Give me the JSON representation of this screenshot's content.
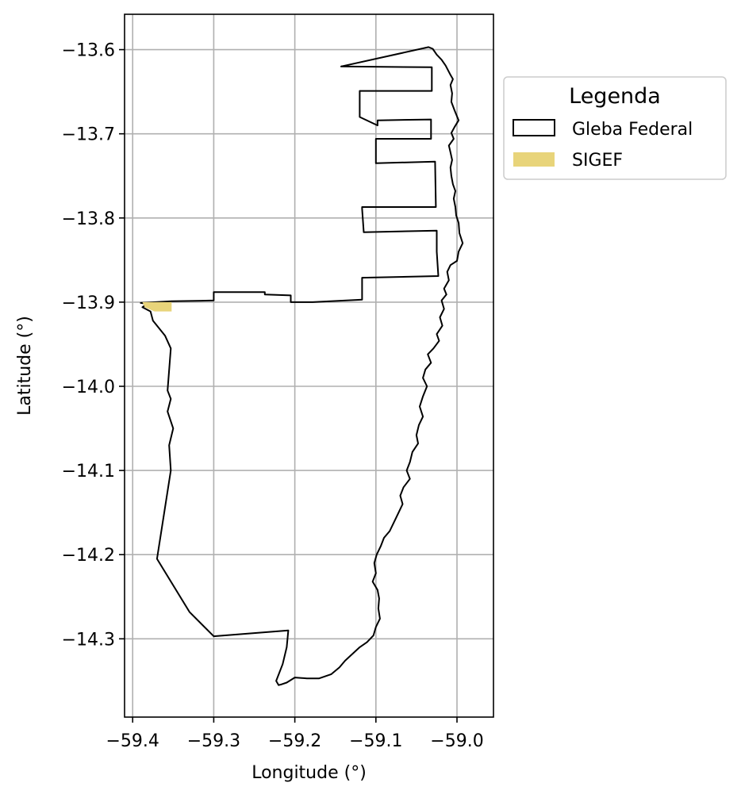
{
  "chart_data": {
    "type": "map",
    "xlabel": "Longitude (°)",
    "ylabel": "Latitude (°)",
    "xlim": [
      -59.41,
      -58.955
    ],
    "ylim": [
      -14.393,
      -13.558
    ],
    "x_ticks": [
      -59.4,
      -59.3,
      -59.2,
      -59.1,
      -59.0
    ],
    "x_tick_labels": [
      "−59.4",
      "−59.3",
      "−59.2",
      "−59.1",
      "−59.0"
    ],
    "y_ticks": [
      -13.6,
      -13.7,
      -13.8,
      -13.9,
      -14.0,
      -14.1,
      -14.2,
      -14.3
    ],
    "y_tick_labels": [
      "−13.6",
      "−13.7",
      "−13.8",
      "−13.9",
      "−14.0",
      "−14.1",
      "−14.2",
      "−14.3"
    ],
    "grid": true,
    "legend": {
      "title": "Legenda",
      "placement": "outside-upper-right",
      "entries": [
        {
          "label": "Gleba Federal",
          "style": "outline",
          "color": "#000000"
        },
        {
          "label": "SIGEF",
          "style": "fill",
          "color": "#e8d47a"
        }
      ]
    },
    "layers": [
      {
        "name": "Gleba Federal",
        "color": "#000000",
        "outline": [
          [
            -59.035,
            -13.597
          ],
          [
            -59.03,
            -13.599
          ],
          [
            -59.025,
            -13.606
          ],
          [
            -59.019,
            -13.612
          ],
          [
            -59.014,
            -13.619
          ],
          [
            -59.008,
            -13.63
          ],
          [
            -59.005,
            -13.635
          ],
          [
            -59.008,
            -13.642
          ],
          [
            -59.006,
            -13.652
          ],
          [
            -59.007,
            -13.662
          ],
          [
            -59.003,
            -13.672
          ],
          [
            -58.998,
            -13.684
          ],
          [
            -59.003,
            -13.692
          ],
          [
            -59.007,
            -13.699
          ],
          [
            -59.004,
            -13.706
          ],
          [
            -59.01,
            -13.714
          ],
          [
            -59.008,
            -13.722
          ],
          [
            -59.006,
            -13.731
          ],
          [
            -59.008,
            -13.74
          ],
          [
            -59.007,
            -13.75
          ],
          [
            -59.005,
            -13.76
          ],
          [
            -59.002,
            -13.768
          ],
          [
            -59.004,
            -13.777
          ],
          [
            -59.002,
            -13.787
          ],
          [
            -59.001,
            -13.797
          ],
          [
            -58.998,
            -13.806
          ],
          [
            -58.997,
            -13.818
          ],
          [
            -58.993,
            -13.83
          ],
          [
            -58.998,
            -13.84
          ],
          [
            -59.0,
            -13.851
          ],
          [
            -59.008,
            -13.856
          ],
          [
            -59.012,
            -13.864
          ],
          [
            -59.01,
            -13.874
          ],
          [
            -59.016,
            -13.884
          ],
          [
            -59.013,
            -13.891
          ],
          [
            -59.019,
            -13.898
          ],
          [
            -59.016,
            -13.908
          ],
          [
            -59.021,
            -13.918
          ],
          [
            -59.018,
            -13.928
          ],
          [
            -59.025,
            -13.938
          ],
          [
            -59.022,
            -13.946
          ],
          [
            -59.029,
            -13.955
          ],
          [
            -59.036,
            -13.962
          ],
          [
            -59.032,
            -13.972
          ],
          [
            -59.039,
            -13.98
          ],
          [
            -59.042,
            -13.99
          ],
          [
            -59.037,
            -14.0
          ],
          [
            -59.042,
            -14.012
          ],
          [
            -59.046,
            -14.024
          ],
          [
            -59.042,
            -14.036
          ],
          [
            -59.047,
            -14.046
          ],
          [
            -59.05,
            -14.058
          ],
          [
            -59.048,
            -14.068
          ],
          [
            -59.055,
            -14.078
          ],
          [
            -59.058,
            -14.09
          ],
          [
            -59.062,
            -14.1
          ],
          [
            -59.058,
            -14.11
          ],
          [
            -59.066,
            -14.12
          ],
          [
            -59.07,
            -14.13
          ],
          [
            -59.067,
            -14.14
          ],
          [
            -59.073,
            -14.152
          ],
          [
            -59.078,
            -14.162
          ],
          [
            -59.083,
            -14.172
          ],
          [
            -59.09,
            -14.18
          ],
          [
            -59.094,
            -14.19
          ],
          [
            -59.099,
            -14.2
          ],
          [
            -59.102,
            -14.21
          ],
          [
            -59.1,
            -14.222
          ],
          [
            -59.104,
            -14.232
          ],
          [
            -59.098,
            -14.242
          ],
          [
            -59.096,
            -14.252
          ],
          [
            -59.097,
            -14.264
          ],
          [
            -59.095,
            -14.276
          ],
          [
            -59.1,
            -14.286
          ],
          [
            -59.103,
            -14.296
          ],
          [
            -59.111,
            -14.304
          ],
          [
            -59.12,
            -14.31
          ],
          [
            -59.129,
            -14.318
          ],
          [
            -59.138,
            -14.326
          ],
          [
            -59.145,
            -14.334
          ],
          [
            -59.155,
            -14.342
          ],
          [
            -59.17,
            -14.347
          ],
          [
            -59.185,
            -14.347
          ],
          [
            -59.2,
            -14.346
          ],
          [
            -59.21,
            -14.352
          ],
          [
            -59.216,
            -14.354
          ],
          [
            -59.22,
            -14.355
          ],
          [
            -59.223,
            -14.35
          ],
          [
            -59.215,
            -14.33
          ],
          [
            -59.21,
            -14.31
          ],
          [
            -59.208,
            -14.29
          ],
          [
            -59.3,
            -14.297
          ],
          [
            -59.33,
            -14.268
          ],
          [
            -59.37,
            -14.205
          ],
          [
            -59.353,
            -14.1
          ],
          [
            -59.355,
            -14.07
          ],
          [
            -59.35,
            -14.05
          ],
          [
            -59.357,
            -14.03
          ],
          [
            -59.353,
            -14.015
          ],
          [
            -59.357,
            -14.005
          ],
          [
            -59.353,
            -13.955
          ],
          [
            -59.36,
            -13.94
          ],
          [
            -59.375,
            -13.922
          ],
          [
            -59.378,
            -13.911
          ],
          [
            -59.388,
            -13.906
          ],
          [
            -59.382,
            -13.902
          ],
          [
            -59.39,
            -13.901
          ],
          [
            -59.352,
            -13.899
          ],
          [
            -59.3,
            -13.898
          ],
          [
            -59.3,
            -13.888
          ],
          [
            -59.237,
            -13.888
          ],
          [
            -59.237,
            -13.891
          ],
          [
            -59.205,
            -13.892
          ],
          [
            -59.205,
            -13.9
          ],
          [
            -59.178,
            -13.9
          ],
          [
            -59.117,
            -13.897
          ],
          [
            -59.117,
            -13.871
          ],
          [
            -59.023,
            -13.869
          ],
          [
            -59.025,
            -13.84
          ],
          [
            -59.025,
            -13.815
          ],
          [
            -59.115,
            -13.817
          ],
          [
            -59.117,
            -13.789
          ],
          [
            -59.117,
            -13.787
          ],
          [
            -59.026,
            -13.787
          ],
          [
            -59.027,
            -13.733
          ],
          [
            -59.1,
            -13.735
          ],
          [
            -59.1,
            -13.726
          ],
          [
            -59.1,
            -13.706
          ],
          [
            -59.032,
            -13.706
          ],
          [
            -59.032,
            -13.683
          ],
          [
            -59.098,
            -13.684
          ],
          [
            -59.098,
            -13.69
          ],
          [
            -59.12,
            -13.68
          ],
          [
            -59.12,
            -13.649
          ],
          [
            -59.031,
            -13.649
          ],
          [
            -59.031,
            -13.621
          ],
          [
            -59.143,
            -13.62
          ],
          [
            -59.035,
            -13.597
          ]
        ]
      },
      {
        "name": "SIGEF",
        "color": "#e8d47a",
        "polygon": [
          [
            -59.388,
            -13.9
          ],
          [
            -59.352,
            -13.9
          ],
          [
            -59.352,
            -13.911
          ],
          [
            -59.373,
            -13.911
          ],
          [
            -59.385,
            -13.906
          ],
          [
            -59.388,
            -13.9
          ]
        ]
      }
    ]
  }
}
